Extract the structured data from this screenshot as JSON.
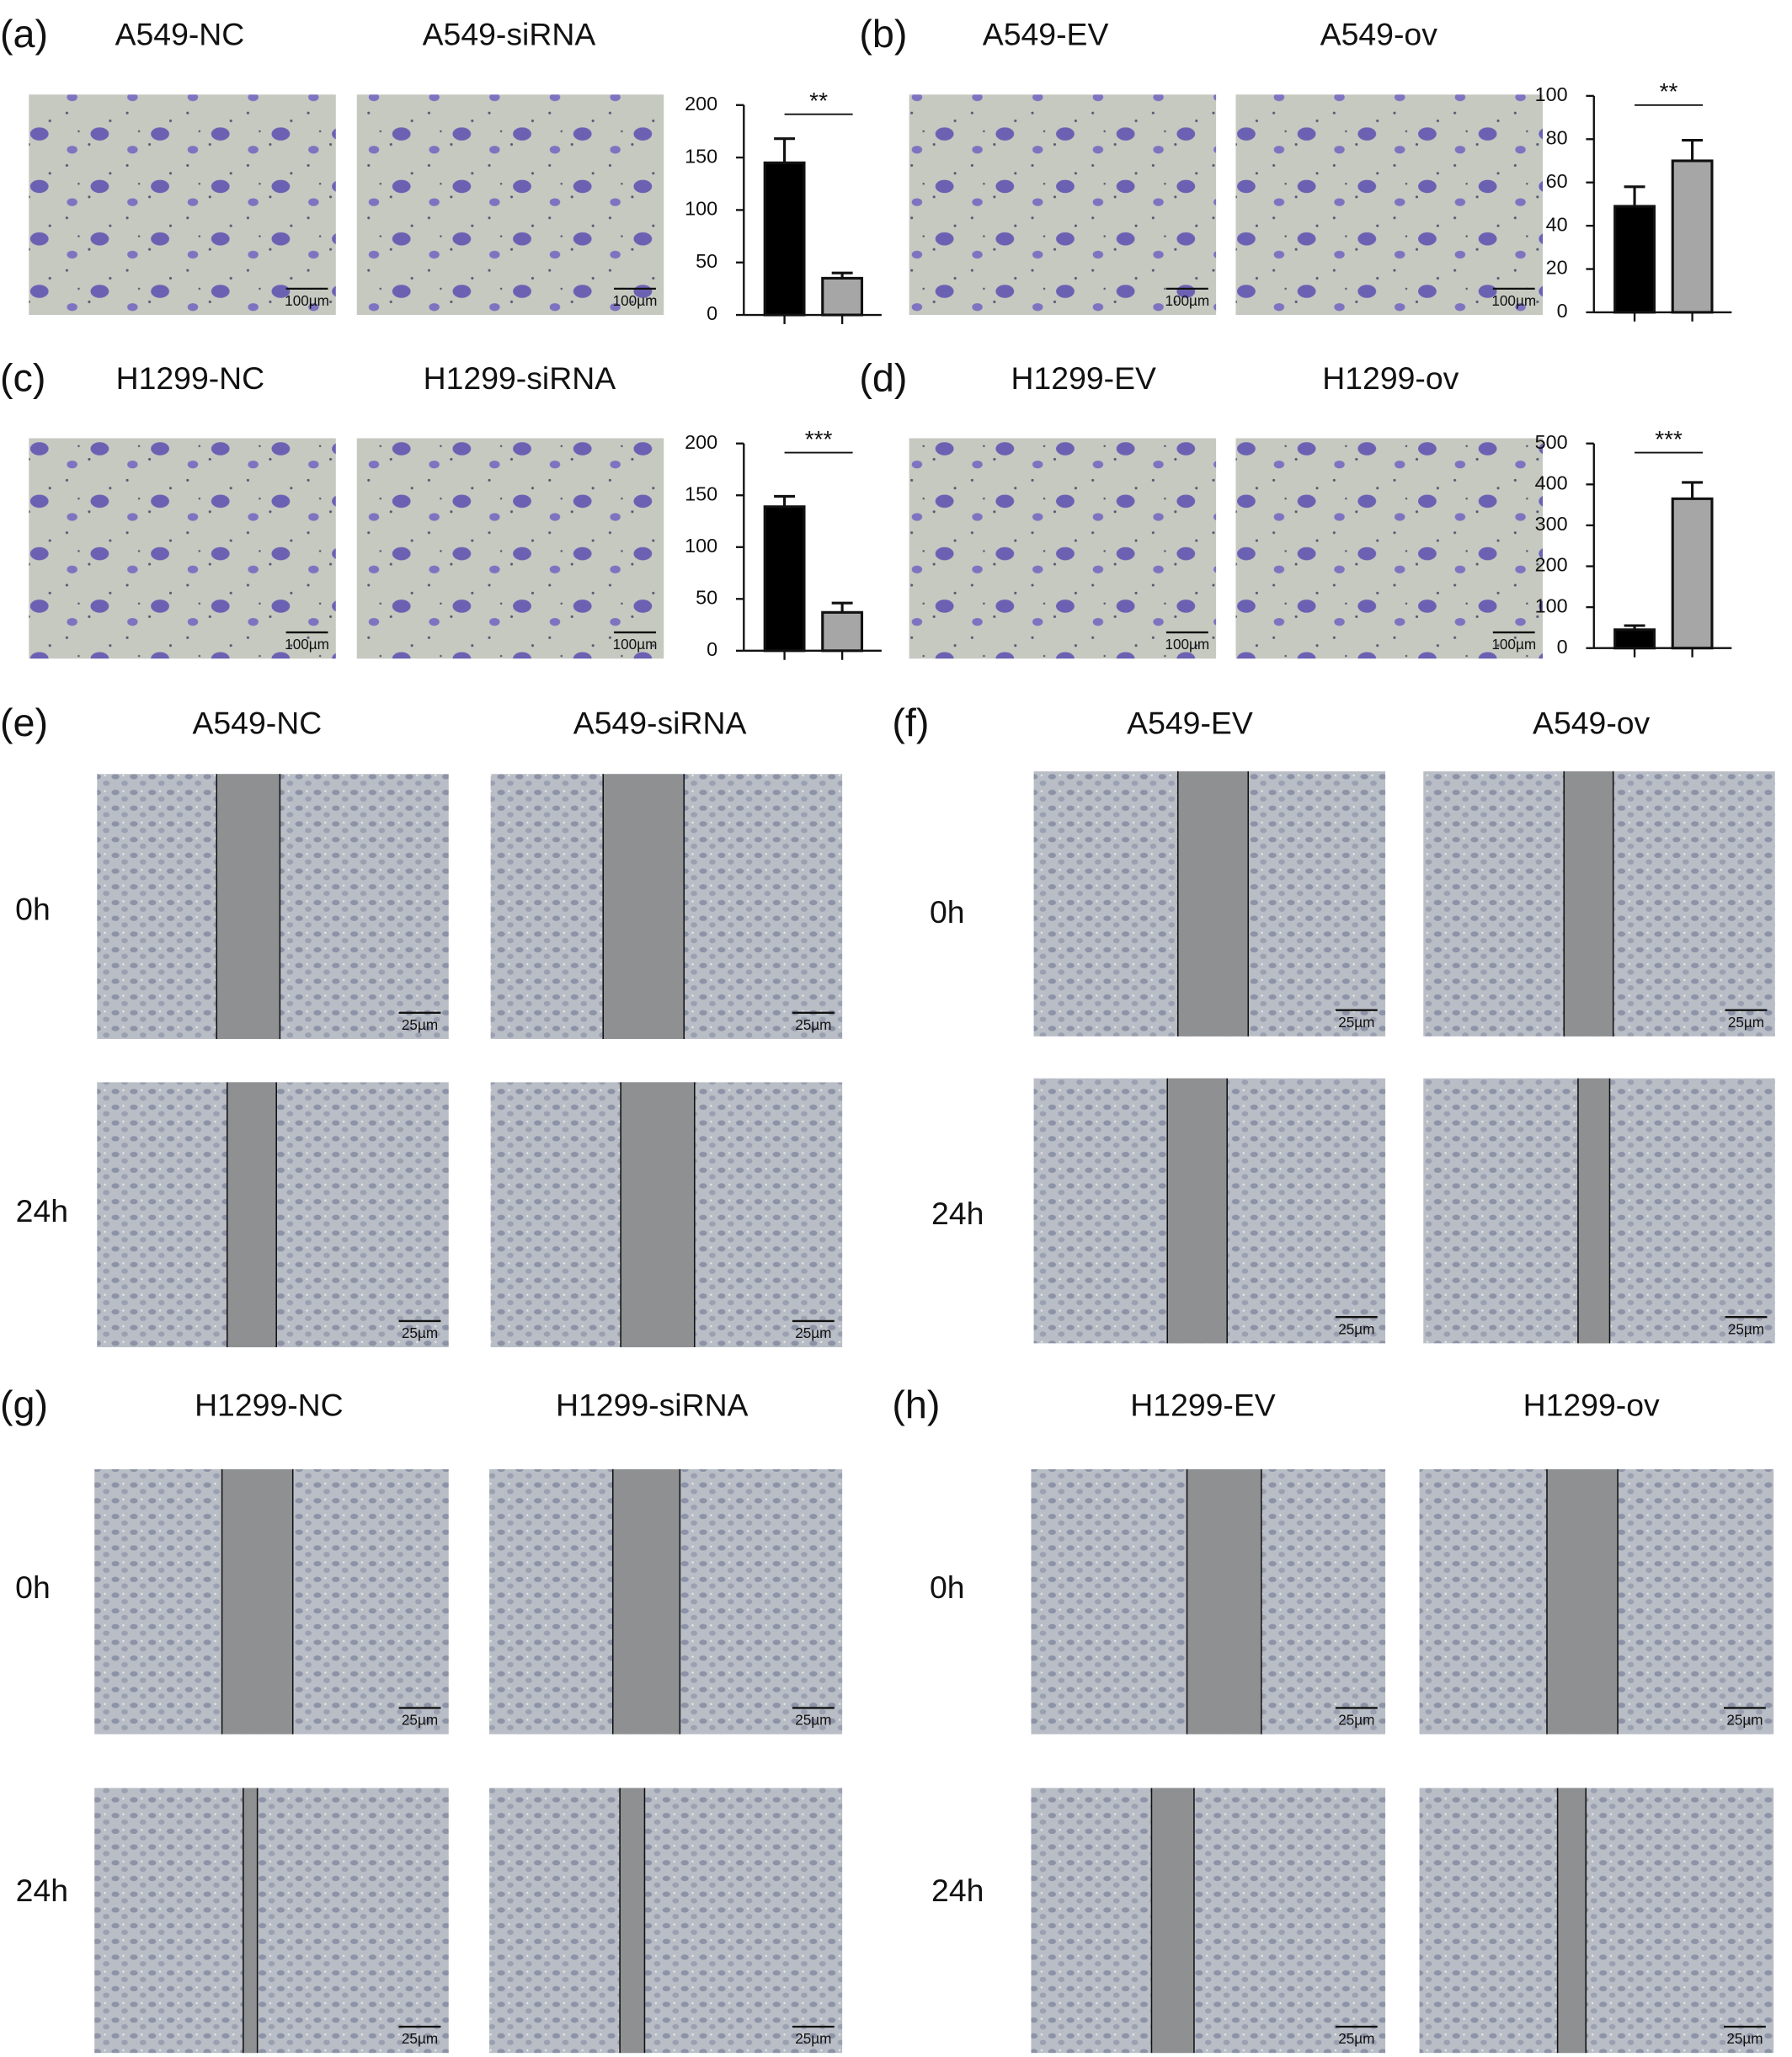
{
  "chart_data": [
    {
      "type": "bar",
      "categories": [
        null,
        null
      ],
      "values": [
        145,
        35
      ],
      "errors": [
        23,
        5
      ],
      "colors": [
        "#000000",
        "#a6a6a6"
      ],
      "ylim": [
        0,
        200
      ],
      "yticks": [
        0,
        50,
        100,
        150,
        200
      ],
      "annotation": "**"
    },
    {
      "type": "bar",
      "categories": [
        null,
        null
      ],
      "values": [
        49,
        70
      ],
      "errors": [
        9,
        9.5
      ],
      "colors": [
        "#000000",
        "#a6a6a6"
      ],
      "ylim": [
        0,
        100
      ],
      "yticks": [
        0,
        20,
        40,
        60,
        80,
        100
      ],
      "annotation": "**"
    },
    {
      "type": "bar",
      "categories": [
        null,
        null
      ],
      "values": [
        139,
        37
      ],
      "errors": [
        10,
        9
      ],
      "colors": [
        "#000000",
        "#a6a6a6"
      ],
      "ylim": [
        0,
        200
      ],
      "yticks": [
        0,
        50,
        100,
        150,
        200
      ],
      "annotation": "***"
    },
    {
      "type": "bar",
      "categories": [
        null,
        null
      ],
      "values": [
        45,
        365
      ],
      "errors": [
        10,
        40
      ],
      "colors": [
        "#000000",
        "#a6a6a6"
      ],
      "ylim": [
        0,
        500
      ],
      "yticks": [
        0,
        100,
        200,
        300,
        400,
        500
      ],
      "annotation": "***"
    }
  ],
  "panels": [
    {
      "label": "(a)",
      "titles": [
        "A549-NC",
        "A549-siRNA"
      ],
      "scale_bars": [
        "100µm",
        "100µm"
      ]
    },
    {
      "label": "(b)",
      "titles": [
        "A549-EV",
        "A549-ov"
      ],
      "scale_bars": [
        "100µm",
        "100µm"
      ]
    },
    {
      "label": "(c)",
      "titles": [
        "H1299-NC",
        "H1299-siRNA"
      ],
      "scale_bars": [
        "100µm",
        "100µm"
      ]
    },
    {
      "label": "(d)",
      "titles": [
        "H1299-EV",
        "H1299-ov"
      ],
      "scale_bars": [
        "100µm",
        "100µm"
      ]
    },
    {
      "label": "(e)",
      "titles": [
        "A549-NC",
        "A549-siRNA"
      ],
      "rows": [
        "0h",
        "24h"
      ],
      "scale_bars": [
        [
          "25µm",
          "25µm"
        ],
        [
          "25µm",
          "25µm"
        ]
      ]
    },
    {
      "label": "(f)",
      "titles": [
        "A549-EV",
        "A549-ov"
      ],
      "rows": [
        "0h",
        "24h"
      ],
      "scale_bars": [
        [
          "25µm",
          "25µm"
        ],
        [
          "25µm",
          "25µm"
        ]
      ]
    },
    {
      "label": "(g)",
      "titles": [
        "H1299-NC",
        "H1299-siRNA"
      ],
      "rows": [
        "0h",
        "24h"
      ],
      "scale_bars": [
        [
          "25µm",
          "25µm"
        ],
        [
          "25µm",
          "25µm"
        ]
      ]
    },
    {
      "label": "(h)",
      "titles": [
        "H1299-EV",
        "H1299-ov"
      ],
      "rows": [
        "0h",
        "24h"
      ],
      "scale_bars": [
        [
          "25µm",
          "25µm"
        ],
        [
          "25µm",
          "25µm"
        ]
      ]
    }
  ]
}
